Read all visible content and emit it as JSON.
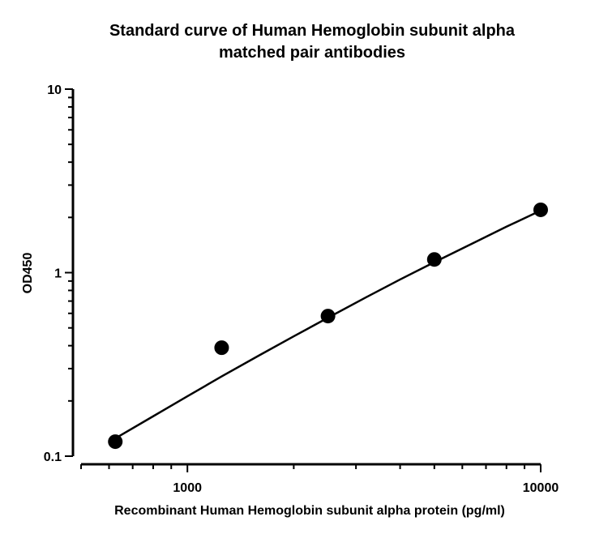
{
  "chart_data": {
    "type": "scatter",
    "title_lines": [
      "Standard curve of Human Hemoglobin subunit alpha",
      "matched pair antibodies"
    ],
    "xlabel": "Recombinant Human Hemoglobin subunit alpha protein (pg/ml)",
    "ylabel": "OD450",
    "x_scale": "log",
    "y_scale": "log",
    "xlim": [
      500,
      10000
    ],
    "ylim": [
      0.1,
      10
    ],
    "x_tick_labels": [
      {
        "value": 1000,
        "label": "1000"
      },
      {
        "value": 10000,
        "label": "10000"
      }
    ],
    "y_tick_labels": [
      {
        "value": 0.1,
        "label": "0.1"
      },
      {
        "value": 1,
        "label": "1"
      },
      {
        "value": 10,
        "label": "10"
      }
    ],
    "grid": false,
    "points": [
      {
        "x": 625,
        "y": 0.12
      },
      {
        "x": 1250,
        "y": 0.39
      },
      {
        "x": 2500,
        "y": 0.58
      },
      {
        "x": 5000,
        "y": 1.18
      },
      {
        "x": 10000,
        "y": 2.2
      }
    ],
    "fit_curve": {
      "x": [
        625,
        800,
        1000,
        1250,
        1600,
        2000,
        2500,
        3200,
        4000,
        5000,
        6400,
        8000,
        10000
      ],
      "y": [
        0.125,
        0.165,
        0.212,
        0.272,
        0.355,
        0.45,
        0.568,
        0.733,
        0.918,
        1.14,
        1.44,
        1.78,
        2.18
      ]
    },
    "colors": {
      "point": "#000000",
      "line": "#000000",
      "axis": "#000000"
    }
  }
}
